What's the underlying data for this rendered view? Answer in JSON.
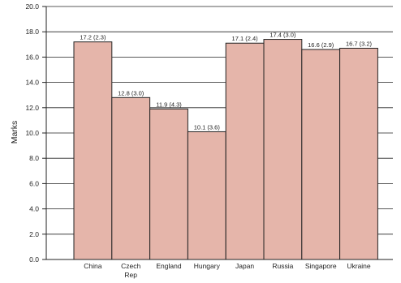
{
  "chart_data": {
    "type": "bar",
    "title": "",
    "xlabel": "",
    "ylabel": "Marks",
    "ylim": [
      0,
      20
    ],
    "yticks": [
      0,
      2,
      4,
      6,
      8,
      10,
      12,
      14,
      16,
      18,
      20
    ],
    "ytick_labels": [
      "0.0",
      "2.0",
      "4.0",
      "6.0",
      "8.0",
      "10.0",
      "12.0",
      "14.0",
      "16.0",
      "18.0",
      "20.0"
    ],
    "categories": [
      [
        "China"
      ],
      [
        "Czech",
        "Rep"
      ],
      [
        "England"
      ],
      [
        "Hungary"
      ],
      [
        "Japan"
      ],
      [
        "Russia"
      ],
      [
        "Singapore"
      ],
      [
        "Ukraine"
      ]
    ],
    "values": [
      17.2,
      12.8,
      11.9,
      10.1,
      17.1,
      17.4,
      16.6,
      16.7
    ],
    "data_labels": [
      "17.2 (2.3)",
      "12.8 (3.0)",
      "11.9 (4.3)",
      "10.1 (3.6)",
      "17.1 (2.4)",
      "17.4 (3.0)",
      "16.6 (2.9)",
      "16.7 (3.2)"
    ],
    "grid": true,
    "bar_color": "#e5b5aa",
    "bar_edge_color": "#222222"
  }
}
